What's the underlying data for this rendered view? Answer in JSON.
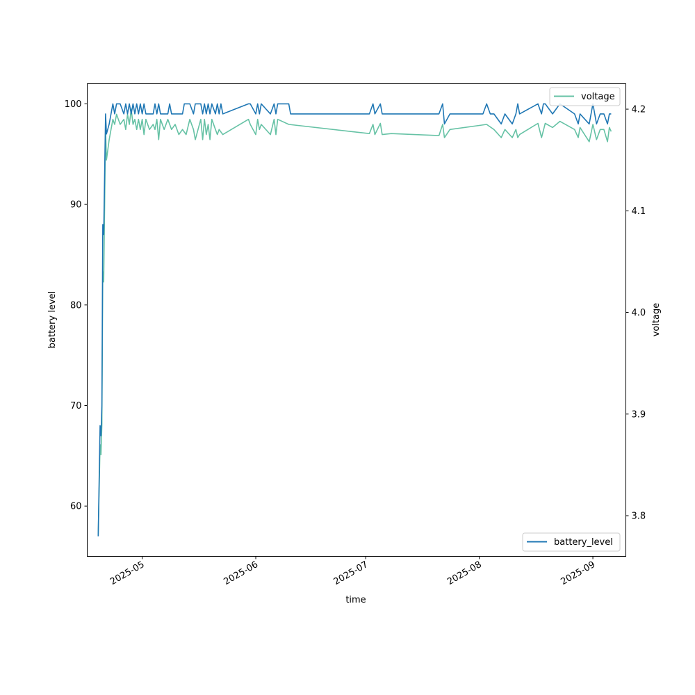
{
  "chart_data": {
    "type": "line",
    "xlabel": "time",
    "ylabel_left": "battery level",
    "ylabel_right": "voltage",
    "x_ticks": [
      "2025-05",
      "2025-06",
      "2025-07",
      "2025-08",
      "2025-09"
    ],
    "y_left_ticks": [
      60,
      70,
      80,
      90,
      100
    ],
    "y_right_ticks": [
      3.8,
      3.9,
      4.0,
      4.1,
      4.2
    ],
    "xlim": [
      "2025-04-16",
      "2025-09-10"
    ],
    "ylim_left": [
      55,
      102
    ],
    "ylim_right": [
      3.76,
      4.225
    ],
    "grid": false,
    "legends": [
      {
        "name": "voltage",
        "position": "upper right"
      },
      {
        "name": "battery_level",
        "position": "lower right"
      }
    ],
    "series": [
      {
        "name": "battery_level",
        "axis": "left",
        "color": "#1f77b4",
        "points": [
          [
            "2025-04-19",
            57
          ],
          [
            "2025-04-19T12:00",
            68
          ],
          [
            "2025-04-19T18:00",
            67
          ],
          [
            "2025-04-20",
            70
          ],
          [
            "2025-04-20T06:00",
            88
          ],
          [
            "2025-04-20T12:00",
            87
          ],
          [
            "2025-04-21",
            99
          ],
          [
            "2025-04-21T06:00",
            97
          ],
          [
            "2025-04-22",
            98
          ],
          [
            "2025-04-23",
            100
          ],
          [
            "2025-04-23T12:00",
            99
          ],
          [
            "2025-04-24",
            100
          ],
          [
            "2025-04-25",
            100
          ],
          [
            "2025-04-26",
            99
          ],
          [
            "2025-04-26T12:00",
            100
          ],
          [
            "2025-04-27",
            99
          ],
          [
            "2025-04-27T12:00",
            100
          ],
          [
            "2025-04-28",
            99
          ],
          [
            "2025-04-28T12:00",
            100
          ],
          [
            "2025-04-29",
            99
          ],
          [
            "2025-04-29T12:00",
            100
          ],
          [
            "2025-04-30",
            99
          ],
          [
            "2025-04-30T12:00",
            100
          ],
          [
            "2025-05-01",
            99
          ],
          [
            "2025-05-01T12:00",
            100
          ],
          [
            "2025-05-02",
            99
          ],
          [
            "2025-05-04",
            99
          ],
          [
            "2025-05-04T12:00",
            100
          ],
          [
            "2025-05-05",
            99
          ],
          [
            "2025-05-05T12:00",
            100
          ],
          [
            "2025-05-06",
            99
          ],
          [
            "2025-05-08",
            99
          ],
          [
            "2025-05-08T12:00",
            100
          ],
          [
            "2025-05-09",
            99
          ],
          [
            "2025-05-12",
            99
          ],
          [
            "2025-05-12T12:00",
            100
          ],
          [
            "2025-05-14",
            100
          ],
          [
            "2025-05-15",
            99
          ],
          [
            "2025-05-15T12:00",
            100
          ],
          [
            "2025-05-17",
            100
          ],
          [
            "2025-05-17T12:00",
            99
          ],
          [
            "2025-05-18",
            100
          ],
          [
            "2025-05-18T12:00",
            99
          ],
          [
            "2025-05-19",
            100
          ],
          [
            "2025-05-19T12:00",
            99
          ],
          [
            "2025-05-20",
            100
          ],
          [
            "2025-05-21",
            99
          ],
          [
            "2025-05-21T12:00",
            100
          ],
          [
            "2025-05-22",
            99
          ],
          [
            "2025-05-22T12:00",
            100
          ],
          [
            "2025-05-23",
            99
          ],
          [
            "2025-05-30",
            100
          ],
          [
            "2025-05-30T12:00",
            100
          ],
          [
            "2025-06-01",
            99
          ],
          [
            "2025-06-01T12:00",
            100
          ],
          [
            "2025-06-02",
            99
          ],
          [
            "2025-06-02T12:00",
            100
          ],
          [
            "2025-06-05",
            99
          ],
          [
            "2025-06-06",
            100
          ],
          [
            "2025-06-06T12:00",
            99
          ],
          [
            "2025-06-07",
            100
          ],
          [
            "2025-06-10",
            100
          ],
          [
            "2025-06-10T12:00",
            99
          ],
          [
            "2025-07-02",
            99
          ],
          [
            "2025-07-03",
            100
          ],
          [
            "2025-07-03T12:00",
            99
          ],
          [
            "2025-07-05",
            100
          ],
          [
            "2025-07-05T12:00",
            99
          ],
          [
            "2025-07-21",
            99
          ],
          [
            "2025-07-22",
            100
          ],
          [
            "2025-07-22T12:00",
            98
          ],
          [
            "2025-07-24",
            99
          ],
          [
            "2025-08-02",
            99
          ],
          [
            "2025-08-03",
            100
          ],
          [
            "2025-08-04",
            99
          ],
          [
            "2025-08-05",
            99
          ],
          [
            "2025-08-07",
            98
          ],
          [
            "2025-08-08",
            99
          ],
          [
            "2025-08-10",
            98
          ],
          [
            "2025-08-11",
            99
          ],
          [
            "2025-08-11T12:00",
            100
          ],
          [
            "2025-08-12",
            99
          ],
          [
            "2025-08-17",
            100
          ],
          [
            "2025-08-18",
            99
          ],
          [
            "2025-08-18T12:00",
            100
          ],
          [
            "2025-08-19",
            100
          ],
          [
            "2025-08-21",
            99
          ],
          [
            "2025-08-23",
            100
          ],
          [
            "2025-08-27",
            99
          ],
          [
            "2025-08-28",
            98
          ],
          [
            "2025-08-28T12:00",
            99
          ],
          [
            "2025-08-31",
            98
          ],
          [
            "2025-09-01",
            100
          ],
          [
            "2025-09-02",
            98
          ],
          [
            "2025-09-03",
            99
          ],
          [
            "2025-09-04",
            99
          ],
          [
            "2025-09-05",
            98
          ],
          [
            "2025-09-05T12:00",
            99
          ],
          [
            "2025-09-06",
            99
          ]
        ]
      },
      {
        "name": "voltage",
        "axis": "right",
        "color": "#66c2a5",
        "points": [
          [
            "2025-04-19",
            3.78
          ],
          [
            "2025-04-19T12:00",
            3.87
          ],
          [
            "2025-04-19T18:00",
            3.86
          ],
          [
            "2025-04-20",
            3.89
          ],
          [
            "2025-04-20T06:00",
            4.04
          ],
          [
            "2025-04-20T12:00",
            4.03
          ],
          [
            "2025-04-21",
            4.18
          ],
          [
            "2025-04-21T06:00",
            4.15
          ],
          [
            "2025-04-22",
            4.17
          ],
          [
            "2025-04-23",
            4.19
          ],
          [
            "2025-04-23T12:00",
            4.185
          ],
          [
            "2025-04-24",
            4.195
          ],
          [
            "2025-04-25",
            4.185
          ],
          [
            "2025-04-26",
            4.19
          ],
          [
            "2025-04-26T12:00",
            4.18
          ],
          [
            "2025-04-27",
            4.195
          ],
          [
            "2025-04-27T12:00",
            4.185
          ],
          [
            "2025-04-28",
            4.2
          ],
          [
            "2025-04-28T12:00",
            4.185
          ],
          [
            "2025-04-29",
            4.19
          ],
          [
            "2025-04-29T12:00",
            4.18
          ],
          [
            "2025-04-30",
            4.19
          ],
          [
            "2025-04-30T12:00",
            4.18
          ],
          [
            "2025-05-01",
            4.19
          ],
          [
            "2025-05-01T12:00",
            4.175
          ],
          [
            "2025-05-02",
            4.19
          ],
          [
            "2025-05-03",
            4.18
          ],
          [
            "2025-05-04",
            4.185
          ],
          [
            "2025-05-04T12:00",
            4.18
          ],
          [
            "2025-05-05",
            4.19
          ],
          [
            "2025-05-05T12:00",
            4.17
          ],
          [
            "2025-05-06",
            4.19
          ],
          [
            "2025-05-07",
            4.18
          ],
          [
            "2025-05-08",
            4.19
          ],
          [
            "2025-05-09",
            4.18
          ],
          [
            "2025-05-10",
            4.185
          ],
          [
            "2025-05-11",
            4.175
          ],
          [
            "2025-05-12",
            4.18
          ],
          [
            "2025-05-13",
            4.175
          ],
          [
            "2025-05-14",
            4.19
          ],
          [
            "2025-05-15",
            4.18
          ],
          [
            "2025-05-15T12:00",
            4.17
          ],
          [
            "2025-05-17",
            4.19
          ],
          [
            "2025-05-17T12:00",
            4.17
          ],
          [
            "2025-05-18",
            4.19
          ],
          [
            "2025-05-18T12:00",
            4.175
          ],
          [
            "2025-05-19",
            4.185
          ],
          [
            "2025-05-19T12:00",
            4.17
          ],
          [
            "2025-05-20",
            4.19
          ],
          [
            "2025-05-21",
            4.18
          ],
          [
            "2025-05-21T12:00",
            4.175
          ],
          [
            "2025-05-22",
            4.18
          ],
          [
            "2025-05-23",
            4.175
          ],
          [
            "2025-05-30",
            4.19
          ],
          [
            "2025-05-30T12:00",
            4.185
          ],
          [
            "2025-06-01",
            4.175
          ],
          [
            "2025-06-01T12:00",
            4.19
          ],
          [
            "2025-06-02",
            4.18
          ],
          [
            "2025-06-02T12:00",
            4.185
          ],
          [
            "2025-06-05",
            4.175
          ],
          [
            "2025-06-06",
            4.19
          ],
          [
            "2025-06-06T12:00",
            4.175
          ],
          [
            "2025-06-07",
            4.19
          ],
          [
            "2025-06-10",
            4.185
          ],
          [
            "2025-07-02",
            4.176
          ],
          [
            "2025-07-03",
            4.185
          ],
          [
            "2025-07-03T12:00",
            4.175
          ],
          [
            "2025-07-05",
            4.186
          ],
          [
            "2025-07-05T12:00",
            4.175
          ],
          [
            "2025-07-08",
            4.176
          ],
          [
            "2025-07-21",
            4.174
          ],
          [
            "2025-07-22",
            4.185
          ],
          [
            "2025-07-22T12:00",
            4.172
          ],
          [
            "2025-07-24",
            4.18
          ],
          [
            "2025-08-01",
            4.184
          ],
          [
            "2025-08-03",
            4.185
          ],
          [
            "2025-08-05",
            4.18
          ],
          [
            "2025-08-07",
            4.172
          ],
          [
            "2025-08-08",
            4.18
          ],
          [
            "2025-08-10",
            4.172
          ],
          [
            "2025-08-11",
            4.18
          ],
          [
            "2025-08-11T12:00",
            4.172
          ],
          [
            "2025-08-12",
            4.175
          ],
          [
            "2025-08-17",
            4.186
          ],
          [
            "2025-08-18",
            4.172
          ],
          [
            "2025-08-19",
            4.186
          ],
          [
            "2025-08-21",
            4.182
          ],
          [
            "2025-08-23",
            4.188
          ],
          [
            "2025-08-27",
            4.18
          ],
          [
            "2025-08-28",
            4.172
          ],
          [
            "2025-08-28T12:00",
            4.182
          ],
          [
            "2025-08-31",
            4.168
          ],
          [
            "2025-09-01",
            4.185
          ],
          [
            "2025-09-02",
            4.17
          ],
          [
            "2025-09-03",
            4.18
          ],
          [
            "2025-09-04",
            4.18
          ],
          [
            "2025-09-05",
            4.168
          ],
          [
            "2025-09-05T12:00",
            4.182
          ],
          [
            "2025-09-06",
            4.178
          ]
        ]
      }
    ]
  }
}
